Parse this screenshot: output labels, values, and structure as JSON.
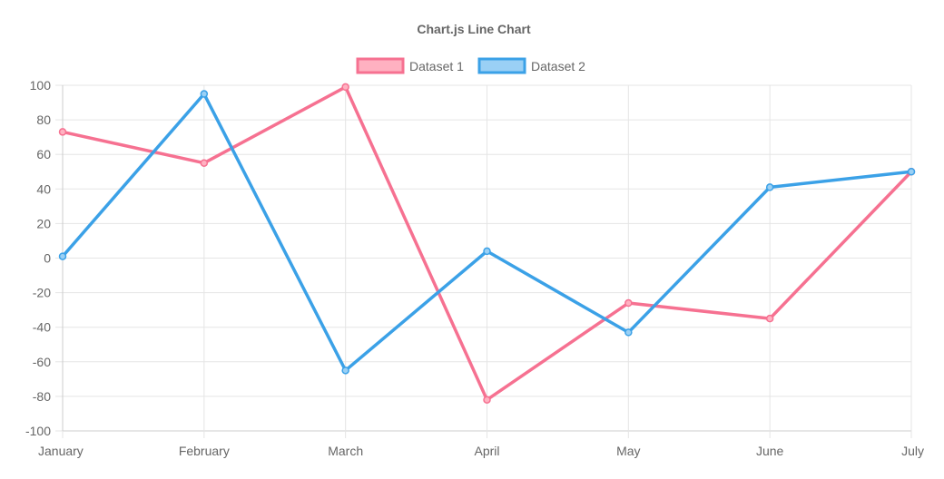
{
  "chart_data": {
    "type": "line",
    "title": "Chart.js Line Chart",
    "categories": [
      "January",
      "February",
      "March",
      "April",
      "May",
      "June",
      "July"
    ],
    "ylim": [
      -100,
      100
    ],
    "yticks": [
      100,
      80,
      60,
      40,
      20,
      0,
      -20,
      -40,
      -60,
      -80,
      -100
    ],
    "grid": true,
    "legend_position": "top",
    "series": [
      {
        "name": "Dataset 1",
        "color": "#f67191",
        "fill": "#ffb1c1",
        "values": [
          73,
          55,
          99,
          -82,
          -26,
          -35,
          50
        ]
      },
      {
        "name": "Dataset 2",
        "color": "#3ba1e7",
        "fill": "#9ad0f5",
        "values": [
          1,
          95,
          -65,
          4,
          -43,
          41,
          50
        ]
      }
    ]
  }
}
